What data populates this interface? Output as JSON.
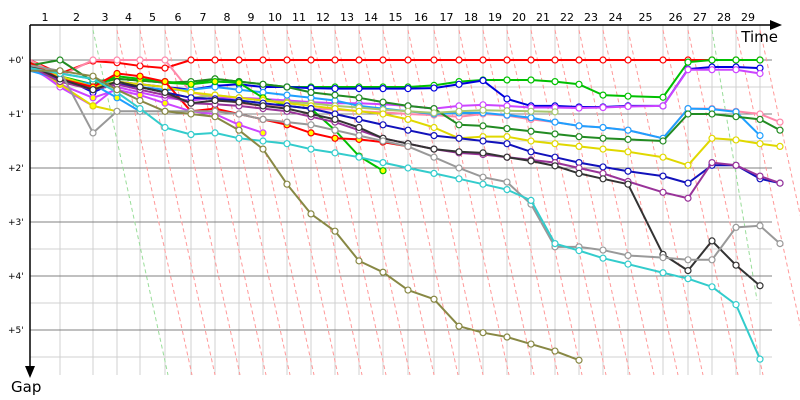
{
  "chart_data": {
    "type": "line",
    "title": "",
    "xlabel": "Time",
    "ylabel": "Gap",
    "x_ticks": [
      "1",
      "2",
      "3",
      "4",
      "5",
      "6",
      "7",
      "8",
      "9",
      "10",
      "11",
      "12",
      "13",
      "14",
      "15",
      "16",
      "17",
      "18",
      "19",
      "20",
      "21",
      "22",
      "23",
      "24",
      "25",
      "26",
      "27",
      "28",
      "29"
    ],
    "y_ticks": [
      "+0'",
      "+1'",
      "+2'",
      "+3'",
      "+4'",
      "+5'"
    ],
    "y_unit": "minutes",
    "ylim": [
      0,
      5.8
    ],
    "grid": true,
    "series": [
      {
        "color": "#ff0000",
        "marker_fill": "#ffffff",
        "values": [
          0,
          0.25,
          0.02,
          0.05,
          0.11,
          0.15,
          0,
          0,
          0,
          0,
          0,
          0,
          0,
          0,
          0,
          0,
          0,
          0,
          0,
          0,
          0,
          0,
          0,
          0,
          0,
          0,
          0,
          0,
          0,
          0
        ]
      },
      {
        "color": "#00c000",
        "marker_fill": "#ffffff",
        "values": [
          0.05,
          0.3,
          0.45,
          0.35,
          0.38,
          0.42,
          0.45,
          0.35,
          0.4,
          0.45,
          0.5,
          0.5,
          0.5,
          0.5,
          0.5,
          0.5,
          0.47,
          0.4,
          0.37,
          0.37,
          0.37,
          0.4,
          0.45,
          0.65,
          0.67,
          0.69,
          0.04,
          0,
          0,
          0
        ]
      },
      {
        "color": "#0000dd",
        "marker_fill": "#ffffff",
        "values": [
          0.1,
          0.3,
          0.6,
          0.4,
          0.45,
          0.5,
          0.55,
          0.48,
          0.45,
          0.5,
          0.5,
          0.52,
          0.53,
          0.53,
          0.53,
          0.53,
          0.52,
          0.45,
          0.38,
          0.72,
          0.85,
          0.85,
          0.87,
          0.87,
          0.85,
          0.85,
          0.17,
          0.13,
          0.13,
          0.15
        ]
      },
      {
        "color": "#cc44ff",
        "marker_fill": "#ffffff",
        "values": [
          0.1,
          0.5,
          0.85,
          0.5,
          0.6,
          0.7,
          0.75,
          0.7,
          0.7,
          0.72,
          0.75,
          0.78,
          0.8,
          0.8,
          0.82,
          0.85,
          0.9,
          0.85,
          0.83,
          0.85,
          0.88,
          0.88,
          0.89,
          0.88,
          0.86,
          0.85,
          0.18,
          0.18,
          0.18,
          0.25
        ]
      },
      {
        "color": "#cc44ff",
        "marker_fill": "#ffff00",
        "values": [
          0.15,
          0.45,
          0.7,
          0.55,
          0.65,
          0.8,
          0.95,
          1.0,
          1.2,
          1.35
        ]
      },
      {
        "color": "#ff88aa",
        "marker_fill": "#ffffff",
        "values": [
          0,
          0.3,
          0,
          0,
          0,
          0,
          0.6,
          0.7,
          0.8,
          0.85,
          0.85,
          0.9,
          0.92,
          0.95,
          0.97,
          1.0,
          1.02,
          1.05,
          1.0,
          1.03,
          1.1,
          1.15,
          1.22,
          1.25,
          1.3,
          1.45,
          0.9,
          0.9,
          0.95,
          1.0,
          1.15
        ]
      },
      {
        "color": "#1e9fff",
        "marker_fill": "#ffffff",
        "values": [
          0.15,
          0.25,
          0.35,
          0.45,
          0.5,
          0.55,
          0.55,
          0.5,
          0.55,
          0.6,
          0.65,
          0.7,
          0.75,
          0.85,
          0.9,
          0.95,
          1.0,
          0.98,
          0.98,
          1.02,
          1.07,
          1.15,
          1.22,
          1.25,
          1.3,
          1.45,
          0.9,
          0.91,
          0.96,
          1.4
        ]
      },
      {
        "color": "#1e9fff",
        "marker_fill": "#ffff00",
        "values": [
          0.2,
          0.35,
          0.45,
          0.7,
          0.95
        ]
      },
      {
        "color": "#228b22",
        "marker_fill": "#ffffff",
        "values": [
          0.1,
          0,
          0.4,
          0.35,
          0.38,
          0.42,
          0.4,
          0.35,
          0.4,
          0.45,
          0.5,
          0.6,
          0.65,
          0.7,
          0.78,
          0.85,
          0.9,
          1.2,
          1.22,
          1.27,
          1.32,
          1.37,
          1.42,
          1.45,
          1.47,
          1.5,
          1.0,
          1.0,
          1.05,
          1.1,
          1.3
        ]
      },
      {
        "color": "#00c000",
        "marker_fill": "#ffff00",
        "values": [
          0.05,
          0.35,
          0.5,
          0.3,
          0.35,
          0.4,
          0.45,
          0.4,
          0.42,
          0.7,
          0.85,
          0.9,
          1.3,
          1.78,
          2.05
        ]
      },
      {
        "color": "#a8c870",
        "marker_fill": "#ffffff",
        "values": [
          0.1,
          0.3,
          0.5,
          0.45,
          0.5,
          0.6,
          0.7,
          0.65,
          0.7,
          0.75,
          0.78,
          0.8,
          0.85,
          0.88,
          0.92,
          0.95,
          0.98,
          0.95,
          0.93,
          0.94,
          0.95,
          0.96
        ]
      },
      {
        "color": "#e0d800",
        "marker_fill": "#ffff00",
        "values": [
          0.05,
          0.45,
          0.85,
          0.95
        ]
      },
      {
        "color": "#e0d800",
        "marker_fill": "#ffffff",
        "values": [
          0.1,
          0.3,
          0.5,
          0.4,
          0.45,
          0.5,
          0.6,
          0.65,
          0.7,
          0.75,
          0.8,
          0.85,
          0.9,
          0.95,
          1.0,
          1.1,
          1.25,
          1.45,
          1.42,
          1.42,
          1.5,
          1.55,
          1.6,
          1.65,
          1.7,
          1.8,
          1.95,
          1.45,
          1.48,
          1.55,
          1.6
        ]
      },
      {
        "color": "#ff0000",
        "marker_fill": "#ffff00",
        "values": [
          0.05,
          0.35,
          0.5,
          0.25,
          0.3,
          0.4,
          0.95,
          0.9,
          1.0,
          1.1,
          1.2,
          1.35,
          1.45,
          1.47,
          1.52,
          1.6
        ]
      },
      {
        "color": "#1111bb",
        "marker_fill": "#ffffff",
        "values": [
          0.12,
          0.35,
          0.55,
          0.45,
          0.5,
          0.6,
          0.7,
          0.72,
          0.75,
          0.8,
          0.85,
          0.9,
          1.0,
          1.1,
          1.2,
          1.3,
          1.4,
          1.45,
          1.5,
          1.55,
          1.7,
          1.8,
          1.9,
          1.98,
          2.06,
          2.15,
          2.28,
          1.95,
          1.95,
          2.2,
          2.28
        ]
      },
      {
        "color": "#993399",
        "marker_fill": "#ffffff",
        "values": [
          0.12,
          0.4,
          0.55,
          0.45,
          0.55,
          0.65,
          0.8,
          0.82,
          0.85,
          0.9,
          0.95,
          1.05,
          1.15,
          1.3,
          1.45,
          1.55,
          1.65,
          1.72,
          1.75,
          1.8,
          1.85,
          1.9,
          2.0,
          2.1,
          2.25,
          2.45,
          2.56,
          1.9,
          1.95,
          2.15,
          2.28
        ]
      },
      {
        "color": "#333333",
        "marker_fill": "#ffffff",
        "values": [
          0.1,
          0.35,
          0.55,
          0.4,
          0.5,
          0.6,
          0.8,
          0.75,
          0.78,
          0.85,
          0.9,
          1.0,
          1.1,
          1.25,
          1.45,
          1.55,
          1.65,
          1.7,
          1.72,
          1.8,
          1.87,
          1.96,
          2.1,
          2.2,
          2.3,
          3.6,
          3.9,
          3.35,
          3.8,
          4.18
        ]
      },
      {
        "color": "#999999",
        "marker_fill": "#ffffff",
        "values": [
          0.1,
          0.2,
          1.35,
          0.95,
          0.95,
          0.95,
          0.95,
          0.95,
          1.0,
          1.1,
          1.15,
          1.2,
          1.3,
          1.4,
          1.5,
          1.6,
          1.8,
          2.0,
          2.17,
          2.26,
          2.67,
          3.46,
          3.46,
          3.52,
          3.62,
          3.66,
          3.7,
          3.7,
          3.1,
          3.07,
          3.4
        ]
      },
      {
        "color": "#33cccc",
        "marker_fill": "#ffffff",
        "values": [
          0.15,
          0.25,
          0.35,
          0.6,
          0.9,
          1.25,
          1.38,
          1.35,
          1.45,
          1.5,
          1.55,
          1.65,
          1.72,
          1.8,
          1.9,
          2.0,
          2.1,
          2.2,
          2.3,
          2.4,
          2.6,
          3.4,
          3.53,
          3.67,
          3.78,
          3.94,
          4.05,
          4.2,
          4.53,
          5.54
        ]
      },
      {
        "color": "#888844",
        "marker_fill": "#ffffff",
        "values": [
          0.2,
          0.2,
          0.3,
          0.55,
          0.75,
          0.95,
          1.0,
          1.05,
          1.3,
          1.65,
          2.3,
          2.85,
          3.17,
          3.72,
          3.93,
          4.26,
          4.43,
          4.93,
          5.05,
          5.13,
          5.26,
          5.39,
          5.56
        ]
      }
    ]
  }
}
